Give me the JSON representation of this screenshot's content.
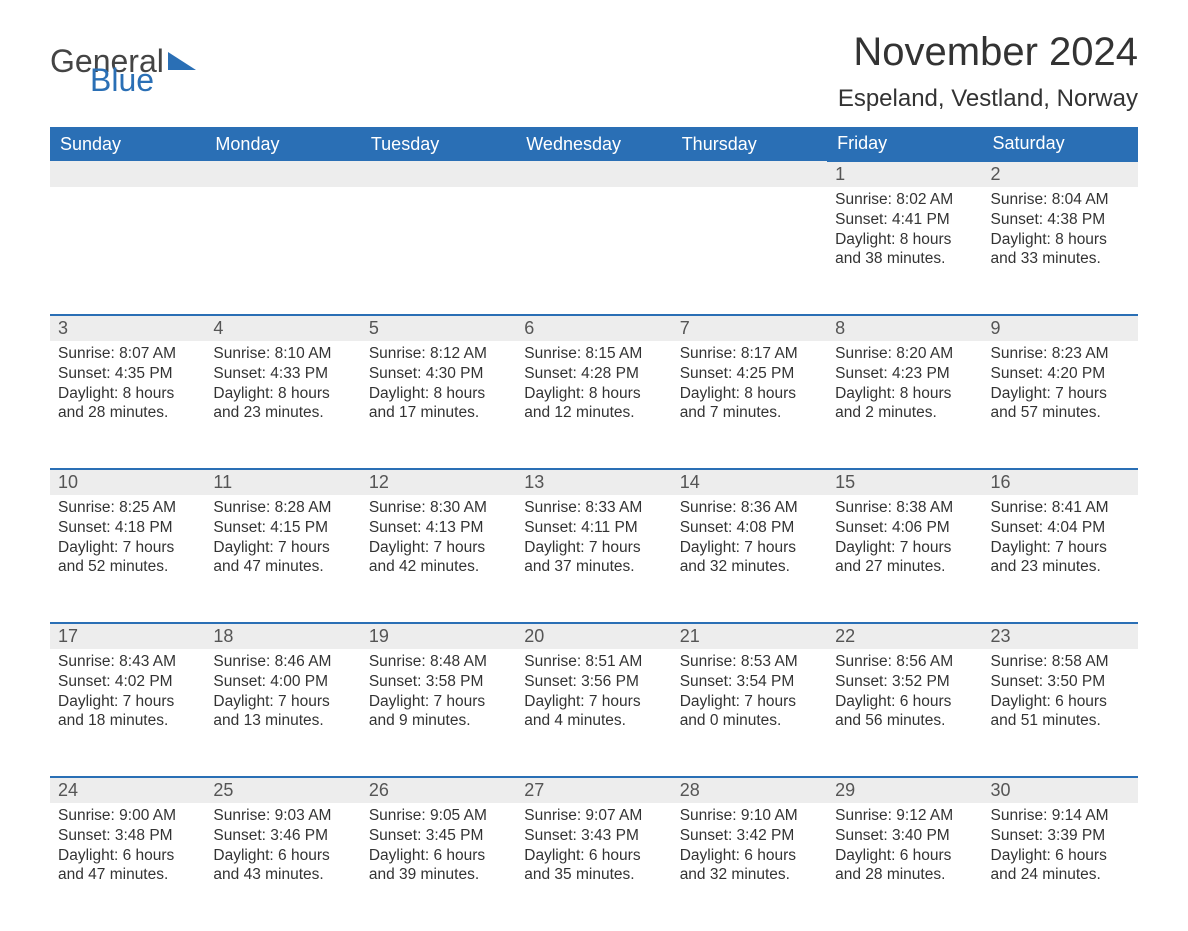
{
  "logo": {
    "word1": "General",
    "word2": "Blue"
  },
  "title": "November 2024",
  "location": "Espeland, Vestland, Norway",
  "colors": {
    "header_bg": "#2a6fb5",
    "header_text": "#ffffff",
    "daynum_bg": "#ededed",
    "daynum_border": "#2a6fb5",
    "text": "#333333",
    "background": "#ffffff"
  },
  "typography": {
    "title_fontsize": 40,
    "location_fontsize": 24,
    "header_fontsize": 18,
    "daynum_fontsize": 18,
    "body_fontsize": 15.5
  },
  "daysOfWeek": [
    "Sunday",
    "Monday",
    "Tuesday",
    "Wednesday",
    "Thursday",
    "Friday",
    "Saturday"
  ],
  "weeks": [
    [
      null,
      null,
      null,
      null,
      null,
      {
        "n": "1",
        "sunrise": "Sunrise: 8:02 AM",
        "sunset": "Sunset: 4:41 PM",
        "day1": "Daylight: 8 hours",
        "day2": "and 38 minutes."
      },
      {
        "n": "2",
        "sunrise": "Sunrise: 8:04 AM",
        "sunset": "Sunset: 4:38 PM",
        "day1": "Daylight: 8 hours",
        "day2": "and 33 minutes."
      }
    ],
    [
      {
        "n": "3",
        "sunrise": "Sunrise: 8:07 AM",
        "sunset": "Sunset: 4:35 PM",
        "day1": "Daylight: 8 hours",
        "day2": "and 28 minutes."
      },
      {
        "n": "4",
        "sunrise": "Sunrise: 8:10 AM",
        "sunset": "Sunset: 4:33 PM",
        "day1": "Daylight: 8 hours",
        "day2": "and 23 minutes."
      },
      {
        "n": "5",
        "sunrise": "Sunrise: 8:12 AM",
        "sunset": "Sunset: 4:30 PM",
        "day1": "Daylight: 8 hours",
        "day2": "and 17 minutes."
      },
      {
        "n": "6",
        "sunrise": "Sunrise: 8:15 AM",
        "sunset": "Sunset: 4:28 PM",
        "day1": "Daylight: 8 hours",
        "day2": "and 12 minutes."
      },
      {
        "n": "7",
        "sunrise": "Sunrise: 8:17 AM",
        "sunset": "Sunset: 4:25 PM",
        "day1": "Daylight: 8 hours",
        "day2": "and 7 minutes."
      },
      {
        "n": "8",
        "sunrise": "Sunrise: 8:20 AM",
        "sunset": "Sunset: 4:23 PM",
        "day1": "Daylight: 8 hours",
        "day2": "and 2 minutes."
      },
      {
        "n": "9",
        "sunrise": "Sunrise: 8:23 AM",
        "sunset": "Sunset: 4:20 PM",
        "day1": "Daylight: 7 hours",
        "day2": "and 57 minutes."
      }
    ],
    [
      {
        "n": "10",
        "sunrise": "Sunrise: 8:25 AM",
        "sunset": "Sunset: 4:18 PM",
        "day1": "Daylight: 7 hours",
        "day2": "and 52 minutes."
      },
      {
        "n": "11",
        "sunrise": "Sunrise: 8:28 AM",
        "sunset": "Sunset: 4:15 PM",
        "day1": "Daylight: 7 hours",
        "day2": "and 47 minutes."
      },
      {
        "n": "12",
        "sunrise": "Sunrise: 8:30 AM",
        "sunset": "Sunset: 4:13 PM",
        "day1": "Daylight: 7 hours",
        "day2": "and 42 minutes."
      },
      {
        "n": "13",
        "sunrise": "Sunrise: 8:33 AM",
        "sunset": "Sunset: 4:11 PM",
        "day1": "Daylight: 7 hours",
        "day2": "and 37 minutes."
      },
      {
        "n": "14",
        "sunrise": "Sunrise: 8:36 AM",
        "sunset": "Sunset: 4:08 PM",
        "day1": "Daylight: 7 hours",
        "day2": "and 32 minutes."
      },
      {
        "n": "15",
        "sunrise": "Sunrise: 8:38 AM",
        "sunset": "Sunset: 4:06 PM",
        "day1": "Daylight: 7 hours",
        "day2": "and 27 minutes."
      },
      {
        "n": "16",
        "sunrise": "Sunrise: 8:41 AM",
        "sunset": "Sunset: 4:04 PM",
        "day1": "Daylight: 7 hours",
        "day2": "and 23 minutes."
      }
    ],
    [
      {
        "n": "17",
        "sunrise": "Sunrise: 8:43 AM",
        "sunset": "Sunset: 4:02 PM",
        "day1": "Daylight: 7 hours",
        "day2": "and 18 minutes."
      },
      {
        "n": "18",
        "sunrise": "Sunrise: 8:46 AM",
        "sunset": "Sunset: 4:00 PM",
        "day1": "Daylight: 7 hours",
        "day2": "and 13 minutes."
      },
      {
        "n": "19",
        "sunrise": "Sunrise: 8:48 AM",
        "sunset": "Sunset: 3:58 PM",
        "day1": "Daylight: 7 hours",
        "day2": "and 9 minutes."
      },
      {
        "n": "20",
        "sunrise": "Sunrise: 8:51 AM",
        "sunset": "Sunset: 3:56 PM",
        "day1": "Daylight: 7 hours",
        "day2": "and 4 minutes."
      },
      {
        "n": "21",
        "sunrise": "Sunrise: 8:53 AM",
        "sunset": "Sunset: 3:54 PM",
        "day1": "Daylight: 7 hours",
        "day2": "and 0 minutes."
      },
      {
        "n": "22",
        "sunrise": "Sunrise: 8:56 AM",
        "sunset": "Sunset: 3:52 PM",
        "day1": "Daylight: 6 hours",
        "day2": "and 56 minutes."
      },
      {
        "n": "23",
        "sunrise": "Sunrise: 8:58 AM",
        "sunset": "Sunset: 3:50 PM",
        "day1": "Daylight: 6 hours",
        "day2": "and 51 minutes."
      }
    ],
    [
      {
        "n": "24",
        "sunrise": "Sunrise: 9:00 AM",
        "sunset": "Sunset: 3:48 PM",
        "day1": "Daylight: 6 hours",
        "day2": "and 47 minutes."
      },
      {
        "n": "25",
        "sunrise": "Sunrise: 9:03 AM",
        "sunset": "Sunset: 3:46 PM",
        "day1": "Daylight: 6 hours",
        "day2": "and 43 minutes."
      },
      {
        "n": "26",
        "sunrise": "Sunrise: 9:05 AM",
        "sunset": "Sunset: 3:45 PM",
        "day1": "Daylight: 6 hours",
        "day2": "and 39 minutes."
      },
      {
        "n": "27",
        "sunrise": "Sunrise: 9:07 AM",
        "sunset": "Sunset: 3:43 PM",
        "day1": "Daylight: 6 hours",
        "day2": "and 35 minutes."
      },
      {
        "n": "28",
        "sunrise": "Sunrise: 9:10 AM",
        "sunset": "Sunset: 3:42 PM",
        "day1": "Daylight: 6 hours",
        "day2": "and 32 minutes."
      },
      {
        "n": "29",
        "sunrise": "Sunrise: 9:12 AM",
        "sunset": "Sunset: 3:40 PM",
        "day1": "Daylight: 6 hours",
        "day2": "and 28 minutes."
      },
      {
        "n": "30",
        "sunrise": "Sunrise: 9:14 AM",
        "sunset": "Sunset: 3:39 PM",
        "day1": "Daylight: 6 hours",
        "day2": "and 24 minutes."
      }
    ]
  ]
}
